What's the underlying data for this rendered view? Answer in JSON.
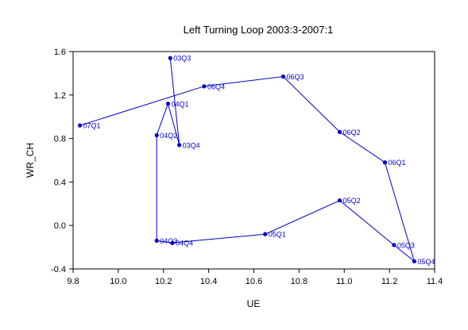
{
  "chart_data": {
    "type": "line",
    "title": "Left Turning Loop 2003:3-2007:1",
    "xlabel": "UE",
    "ylabel": "WR_CH",
    "xlim": [
      9.8,
      11.4
    ],
    "ylim": [
      -0.4,
      1.6
    ],
    "xticks": [
      "9.8",
      "10.0",
      "10.2",
      "10.4",
      "10.6",
      "10.8",
      "11.0",
      "11.2",
      "11.4"
    ],
    "yticks": [
      "1.6",
      "1.2",
      "0.8",
      "0.4",
      "0.0",
      "-0.4"
    ],
    "grid": false,
    "series_color": "#0000c8",
    "points": [
      {
        "label": "03Q3",
        "x": 10.23,
        "y": 1.54
      },
      {
        "label": "03Q4",
        "x": 10.27,
        "y": 0.74
      },
      {
        "label": "04Q1",
        "x": 10.22,
        "y": 1.12
      },
      {
        "label": "04Q2",
        "x": 10.17,
        "y": 0.83
      },
      {
        "label": "04Q3",
        "x": 10.17,
        "y": -0.14
      },
      {
        "label": "04Q4",
        "x": 10.24,
        "y": -0.16
      },
      {
        "label": "05Q1",
        "x": 10.65,
        "y": -0.08
      },
      {
        "label": "05Q2",
        "x": 10.98,
        "y": 0.23
      },
      {
        "label": "05Q3",
        "x": 11.22,
        "y": -0.18
      },
      {
        "label": "05Q4",
        "x": 11.31,
        "y": -0.33
      },
      {
        "label": "06Q1",
        "x": 11.18,
        "y": 0.58
      },
      {
        "label": "06Q2",
        "x": 10.98,
        "y": 0.86
      },
      {
        "label": "06Q3",
        "x": 10.73,
        "y": 1.37
      },
      {
        "label": "06Q4",
        "x": 10.38,
        "y": 1.28
      },
      {
        "label": "07Q1",
        "x": 9.83,
        "y": 0.92
      }
    ]
  }
}
